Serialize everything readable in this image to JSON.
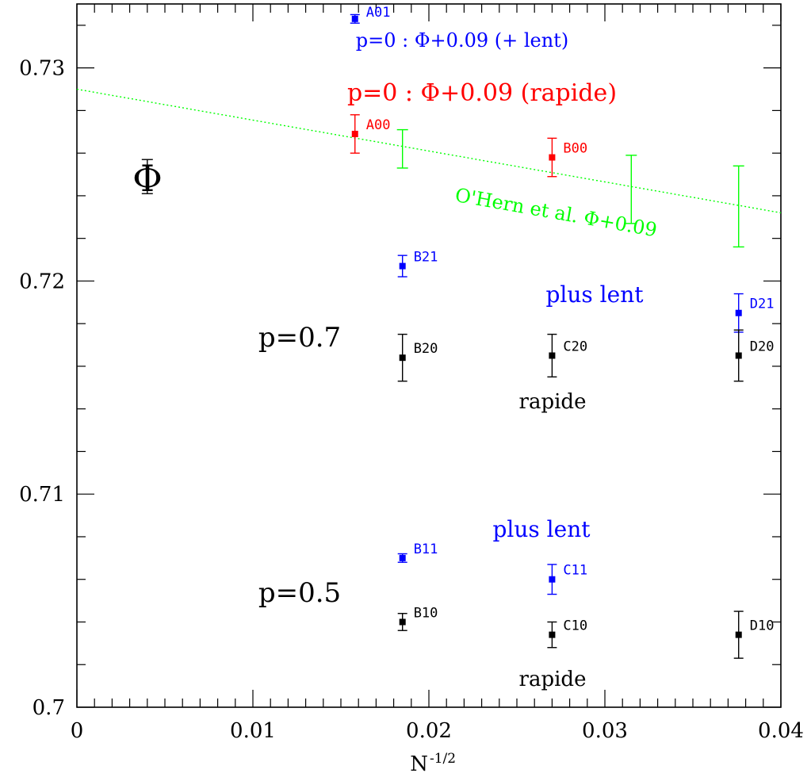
{
  "chart_data": {
    "type": "scatter",
    "title": "",
    "xlabel": "N",
    "xlabel_superscript": "-1/2",
    "ylabel": "Φ",
    "xlim": [
      0,
      0.04
    ],
    "ylim": [
      0.7,
      0.733
    ],
    "x_ticks": [
      "0",
      "0.01",
      "0.02",
      "0.03",
      "0.04"
    ],
    "y_ticks": [
      "0.7",
      "0.71",
      "0.72",
      "0.73"
    ],
    "grid": false,
    "colors": {
      "black": "#000000",
      "blue": "#0000ff",
      "red": "#ff0000",
      "green": "#00ff00"
    },
    "points": [
      {
        "label": "A01",
        "x": 0.0158,
        "y": 0.7323,
        "err": 0.0002,
        "color": "#0000ff"
      },
      {
        "label": "A00",
        "x": 0.0158,
        "y": 0.7269,
        "err": 0.0009,
        "color": "#ff0000"
      },
      {
        "label": "B00",
        "x": 0.027,
        "y": 0.7258,
        "err": 0.0009,
        "color": "#ff0000"
      },
      {
        "label": "B21",
        "x": 0.0185,
        "y": 0.7207,
        "err": 0.0005,
        "color": "#0000ff"
      },
      {
        "label": "D21",
        "x": 0.0376,
        "y": 0.7185,
        "err": 0.0009,
        "color": "#0000ff"
      },
      {
        "label": "B20",
        "x": 0.0185,
        "y": 0.7164,
        "err": 0.0011,
        "color": "#000000"
      },
      {
        "label": "C20",
        "x": 0.027,
        "y": 0.7165,
        "err": 0.001,
        "color": "#000000"
      },
      {
        "label": "D20",
        "x": 0.0376,
        "y": 0.7165,
        "err": 0.0012,
        "color": "#000000"
      },
      {
        "label": "B11",
        "x": 0.0185,
        "y": 0.707,
        "err": 0.0002,
        "color": "#0000ff"
      },
      {
        "label": "C11",
        "x": 0.027,
        "y": 0.706,
        "err": 0.0007,
        "color": "#0000ff"
      },
      {
        "label": "B10",
        "x": 0.0185,
        "y": 0.704,
        "err": 0.0004,
        "color": "#000000"
      },
      {
        "label": "C10",
        "x": 0.027,
        "y": 0.7034,
        "err": 0.0006,
        "color": "#000000"
      },
      {
        "label": "D10",
        "x": 0.0376,
        "y": 0.7034,
        "err": 0.0011,
        "color": "#000000"
      }
    ],
    "ohern_errorbars": [
      {
        "x": 0.0185,
        "y": 0.7262,
        "err": 0.0009
      },
      {
        "x": 0.0315,
        "y": 0.7243,
        "err": 0.0016
      },
      {
        "x": 0.0376,
        "y": 0.7235,
        "err": 0.0019
      }
    ],
    "ohern_fit": {
      "x": [
        0,
        0.04
      ],
      "y": [
        0.729,
        0.7232
      ],
      "color": "#00ff00",
      "style": "dotted"
    },
    "phi_marker": {
      "x": 0.004,
      "y": 0.7249,
      "err": 0.0008
    },
    "annotations": [
      {
        "id": "p0-slow",
        "text": "p=0 : Φ+0.09 (+ lent)",
        "color": "#0000ff"
      },
      {
        "id": "p0-fast",
        "text": "p=0 : Φ+0.09 (rapide)",
        "color": "#ff0000"
      },
      {
        "id": "ohern",
        "text": "O'Hern et al. Φ+0.09",
        "color": "#00ff00"
      },
      {
        "id": "p07",
        "text": "p=0.7",
        "color": "#000000"
      },
      {
        "id": "p07-slow",
        "text": "plus lent",
        "color": "#0000ff"
      },
      {
        "id": "p07-fast",
        "text": "rapide",
        "color": "#000000"
      },
      {
        "id": "p05",
        "text": "p=0.5",
        "color": "#000000"
      },
      {
        "id": "p05-slow",
        "text": "plus lent",
        "color": "#0000ff"
      },
      {
        "id": "p05-fast",
        "text": "rapide",
        "color": "#000000"
      }
    ]
  }
}
